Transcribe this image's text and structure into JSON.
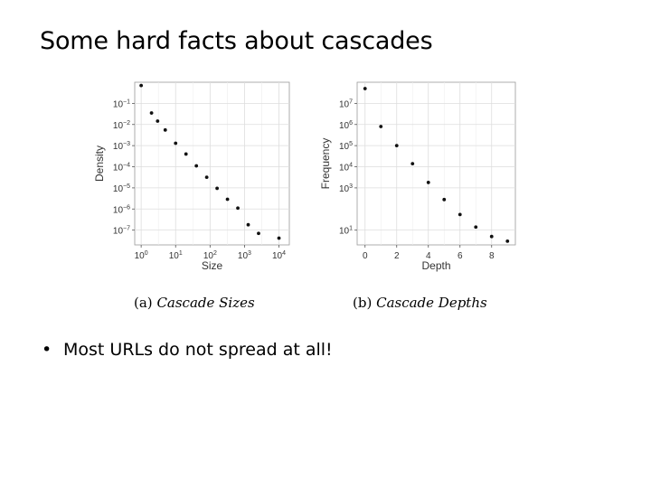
{
  "slide": {
    "title": "Some hard facts about cascades",
    "bullet": "Most URLs do not spread at all!"
  },
  "captions": [
    {
      "label": "(a)",
      "text": "Cascade Sizes"
    },
    {
      "label": "(b)",
      "text": "Cascade Depths"
    }
  ],
  "chart_data": [
    {
      "type": "scatter",
      "xlabel": "Size",
      "ylabel": "Density",
      "x_scale": "log",
      "y_scale": "log",
      "x_ticks": [
        "10^0",
        "10^1",
        "10^2",
        "10^3",
        "10^4"
      ],
      "y_ticks": [
        "10^-1",
        "10^-2",
        "10^-3",
        "10^-4",
        "10^-5",
        "10^-6",
        "10^-7"
      ],
      "xlim": [
        0.65,
        20000
      ],
      "ylim": [
        2e-08,
        1
      ],
      "grid": true,
      "points": [
        {
          "x": 1,
          "y": 0.7
        },
        {
          "x": 2,
          "y": 0.035
        },
        {
          "x": 3,
          "y": 0.0145
        },
        {
          "x": 5,
          "y": 0.0055
        },
        {
          "x": 10,
          "y": 0.0013
        },
        {
          "x": 20,
          "y": 0.0004
        },
        {
          "x": 40,
          "y": 0.00011
        },
        {
          "x": 80,
          "y": 3.2e-05
        },
        {
          "x": 160,
          "y": 9.5e-06
        },
        {
          "x": 320,
          "y": 2.9e-06
        },
        {
          "x": 640,
          "y": 1.1e-06
        },
        {
          "x": 1280,
          "y": 1.8e-07
        },
        {
          "x": 2560,
          "y": 7e-08
        },
        {
          "x": 10000,
          "y": 4.2e-08
        }
      ]
    },
    {
      "type": "scatter",
      "xlabel": "Depth",
      "ylabel": "Frequency",
      "x_scale": "linear",
      "y_scale": "log",
      "x_ticks": [
        "0",
        "2",
        "4",
        "6",
        "8"
      ],
      "y_ticks": [
        "10^1",
        "10^3",
        "10^4",
        "10^5",
        "10^6",
        "10^7"
      ],
      "xlim": [
        -0.5,
        9.5
      ],
      "ylim": [
        2,
        100000000
      ],
      "grid": true,
      "points": [
        {
          "x": 0,
          "y": 50000000
        },
        {
          "x": 1,
          "y": 800000
        },
        {
          "x": 2,
          "y": 100000
        },
        {
          "x": 3,
          "y": 14000
        },
        {
          "x": 4,
          "y": 1800
        },
        {
          "x": 5,
          "y": 280
        },
        {
          "x": 6,
          "y": 55
        },
        {
          "x": 7,
          "y": 14
        },
        {
          "x": 8,
          "y": 5
        },
        {
          "x": 9,
          "y": 3
        }
      ]
    }
  ]
}
